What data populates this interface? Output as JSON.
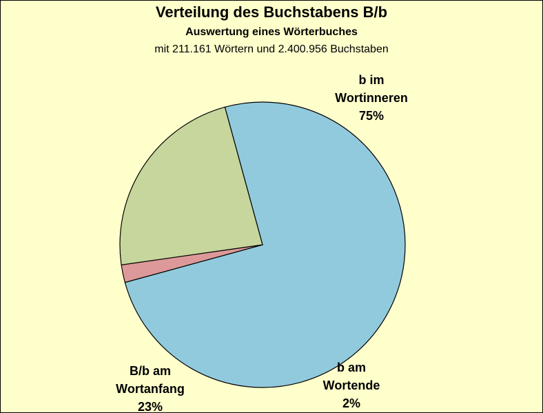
{
  "chart_data": {
    "type": "pie",
    "title": "Verteilung des Buchstabens B/b",
    "subtitle": "Auswertung eines Wörterbuches",
    "subtitle2": "mit 211.161 Wörtern und 2.400.956 Buchstaben",
    "slices": [
      {
        "label_lines": [
          "b im",
          "Wortinneren",
          "75%"
        ],
        "value": 75,
        "color": "#92cadd"
      },
      {
        "label_lines": [
          "b am",
          "Wortende",
          "2%"
        ],
        "value": 2,
        "color": "#dd9999"
      },
      {
        "label_lines": [
          "B/b am",
          "Wortanfang",
          "23%"
        ],
        "value": 23,
        "color": "#c6d69c"
      }
    ],
    "background": "#ffffcc",
    "outline_color": "#000000"
  }
}
